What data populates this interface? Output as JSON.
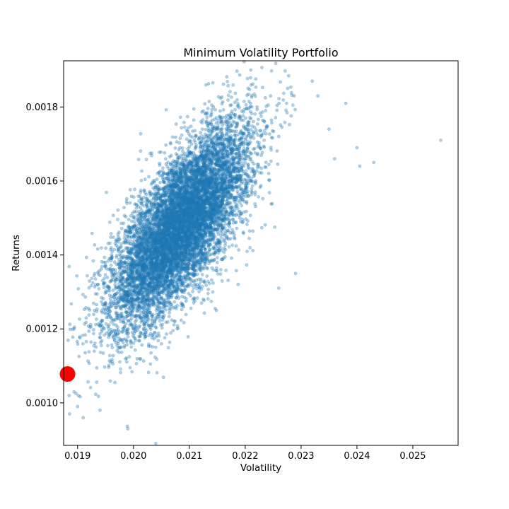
{
  "chart_data": {
    "type": "scatter",
    "title": "Minimum Volatility Portfolio",
    "xlabel": "Volatility",
    "ylabel": "Returns",
    "xlim": [
      0.01875,
      0.02581
    ],
    "ylim": [
      0.000885,
      0.001925
    ],
    "xticks": [
      0.019,
      0.02,
      0.021,
      0.022,
      0.023,
      0.024,
      0.025
    ],
    "xtick_labels": [
      "0.019",
      "0.020",
      "0.021",
      "0.022",
      "0.023",
      "0.024",
      "0.025"
    ],
    "yticks": [
      0.001,
      0.0012,
      0.0014,
      0.0016,
      0.0018
    ],
    "ytick_labels": [
      "0.0010",
      "0.0012",
      "0.0014",
      "0.0016",
      "0.0018"
    ],
    "grid": false,
    "series": [
      {
        "role": "simulated-portfolios",
        "color": "#1f77b4",
        "alpha": 0.35,
        "distribution": {
          "count": 9000,
          "mean": [
            0.02085,
            0.00148
          ],
          "std": [
            0.00062,
            0.000135
          ],
          "correlation": 0.72
        },
        "outliers": [
          [
            0.0255,
            0.00171
          ],
          [
            0.0243,
            0.00165
          ],
          [
            0.024,
            0.00169
          ],
          [
            0.02405,
            0.00164
          ],
          [
            0.0238,
            0.00181
          ],
          [
            0.0235,
            0.00174
          ],
          [
            0.0233,
            0.00183
          ],
          [
            0.0232,
            0.00187
          ],
          [
            0.0236,
            0.00166
          ],
          [
            0.0229,
            0.00135
          ],
          [
            0.0226,
            0.00131
          ],
          [
            0.0221,
            0.0019
          ],
          [
            0.0199,
            0.00093
          ],
          [
            0.0204,
            0.00089
          ],
          [
            0.0191,
            0.00096
          ],
          [
            0.019,
            0.00099
          ],
          [
            0.0194,
            0.00098
          ]
        ]
      },
      {
        "role": "minimum-volatility-point",
        "color": "#ff0000",
        "points": [
          [
            0.01882,
            0.001078
          ]
        ]
      }
    ]
  }
}
